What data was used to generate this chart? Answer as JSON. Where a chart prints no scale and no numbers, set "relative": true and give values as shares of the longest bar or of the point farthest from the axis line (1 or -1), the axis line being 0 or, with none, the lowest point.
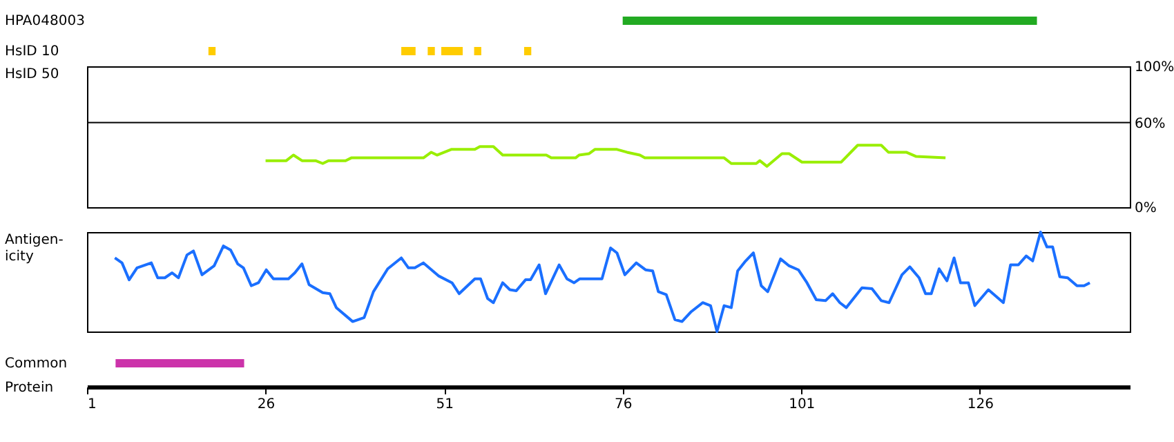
{
  "chart_data": [
    {
      "type": "bar",
      "orientation": "horizontal",
      "categories": [
        "HPA048003",
        "HsID 10"
      ],
      "xlim": [
        1,
        147
      ],
      "tick_labels": "y",
      "series": [
        {
          "color": "#22aa22",
          "values": [
            58,
            null
          ],
          "base": [
            76,
            null
          ]
        },
        {
          "color": "#ffcc00",
          "values": [
            null,
            1
          ],
          "base": [
            null,
            18
          ]
        },
        {
          "color": "#ffcc00",
          "values": [
            null,
            2
          ],
          "base": [
            null,
            45
          ]
        },
        {
          "color": "#ffcc00",
          "values": [
            null,
            1
          ],
          "base": [
            null,
            48.7
          ]
        },
        {
          "color": "#ffcc00",
          "values": [
            null,
            3
          ],
          "base": [
            null,
            50.6
          ]
        },
        {
          "color": "#ffcc00",
          "values": [
            null,
            1
          ],
          "base": [
            null,
            55.2
          ]
        },
        {
          "color": "#ffcc00",
          "values": [
            null,
            1
          ],
          "base": [
            null,
            62.2
          ]
        }
      ]
    },
    {
      "type": "line",
      "ylabel": "HsID 50",
      "xlim": [
        1,
        147
      ],
      "ylim": [
        0,
        100
      ],
      "yticks": [
        {
          "value": 0,
          "label": "0%"
        },
        {
          "value": 60,
          "label": "60%"
        },
        {
          "value": 100,
          "label": "100%"
        }
      ],
      "tick_labels": "y",
      "marker": "none",
      "ref_lines": [
        {
          "axis": "y",
          "value": 60,
          "color": "#000000"
        }
      ],
      "x": [
        26,
        28.9,
        29.9,
        31.1,
        33,
        34,
        34.8,
        37.2,
        38,
        48.1,
        49.2,
        50,
        52,
        55.3,
        56,
        57.9,
        59.2,
        65.3,
        66,
        69.4,
        69.9,
        71.3,
        72.1,
        75.2,
        76.6,
        78.4,
        79.1,
        90.2,
        91.2,
        94.7,
        95.2,
        96.2,
        98.3,
        99.3,
        101.1,
        104.8,
        106.6,
        108.9,
        112.2,
        113.2,
        115.7,
        117.1,
        121.2
      ],
      "series": [
        {
          "color": "#99ee00",
          "values": [
            33,
            33,
            37,
            33,
            33,
            31,
            33,
            33,
            35,
            35,
            39,
            37,
            41,
            41,
            43,
            43,
            37,
            37,
            35,
            35,
            37,
            38,
            41,
            41,
            39,
            37,
            35,
            35,
            31,
            31,
            33,
            29,
            38,
            38,
            32,
            32,
            32,
            44,
            44,
            39,
            39,
            36,
            35
          ]
        }
      ]
    },
    {
      "type": "line",
      "ylabel": "Antigen-icity",
      "relative": true,
      "xlim": [
        1,
        147
      ],
      "tick_labels": false,
      "marker": "none",
      "x": [
        4.9,
        5.9,
        6.9,
        8,
        10,
        10.9,
        11.9,
        12.9,
        13.8,
        15,
        15.9,
        17.1,
        18.8,
        20.1,
        21.1,
        22.1,
        22.9,
        24,
        25,
        26.1,
        27.1,
        29.2,
        30.1,
        31.1,
        32.1,
        34,
        35,
        35.9,
        38.2,
        39.8,
        41.1,
        43.1,
        45,
        46,
        46.9,
        48.1,
        50.2,
        52.1,
        53.1,
        55.3,
        56.1,
        57.1,
        57.9,
        59.2,
        60.2,
        61.1,
        62.4,
        63.1,
        64.3,
        65.2,
        67.1,
        68.2,
        69.2,
        70,
        73.1,
        74.3,
        75.2,
        76.3,
        77.9,
        79.2,
        80.2,
        81,
        82.1,
        83.3,
        84.3,
        85.6,
        87.2,
        88.3,
        89.2,
        90.2,
        91.2,
        92.1,
        93.1,
        94.3,
        95.4,
        96.3,
        98.1,
        99.3,
        100.6,
        101.8,
        103.1,
        104.4,
        105.4,
        106.4,
        107.3,
        109.5,
        110.9,
        112.2,
        113.3,
        115.1,
        116.2,
        117.5,
        118.4,
        119.2,
        120.3,
        121.4,
        122.4,
        123.3,
        124.4,
        125.3,
        127.2,
        129.3,
        130.3,
        131.4,
        132.5,
        133.4,
        134.5,
        135.4,
        136.2,
        137.2,
        138.3,
        139.6,
        140.6,
        141.4
      ],
      "series": [
        {
          "color": "#1a6fff",
          "values": [
            0.74,
            0.69,
            0.52,
            0.64,
            0.69,
            0.54,
            0.54,
            0.59,
            0.54,
            0.77,
            0.81,
            0.57,
            0.66,
            0.86,
            0.82,
            0.68,
            0.64,
            0.46,
            0.49,
            0.62,
            0.53,
            0.53,
            0.59,
            0.68,
            0.47,
            0.39,
            0.38,
            0.24,
            0.1,
            0.14,
            0.4,
            0.63,
            0.74,
            0.64,
            0.64,
            0.69,
            0.56,
            0.49,
            0.38,
            0.53,
            0.53,
            0.33,
            0.29,
            0.49,
            0.42,
            0.41,
            0.52,
            0.52,
            0.67,
            0.38,
            0.67,
            0.53,
            0.49,
            0.53,
            0.53,
            0.84,
            0.79,
            0.57,
            0.69,
            0.62,
            0.61,
            0.4,
            0.37,
            0.12,
            0.1,
            0.2,
            0.29,
            0.26,
            0,
            0.26,
            0.24,
            0.61,
            0.7,
            0.79,
            0.46,
            0.4,
            0.73,
            0.66,
            0.62,
            0.49,
            0.32,
            0.31,
            0.38,
            0.29,
            0.24,
            0.44,
            0.43,
            0.31,
            0.29,
            0.57,
            0.65,
            0.54,
            0.38,
            0.38,
            0.63,
            0.51,
            0.74,
            0.49,
            0.49,
            0.26,
            0.42,
            0.29,
            0.67,
            0.67,
            0.76,
            0.71,
            1,
            0.85,
            0.85,
            0.55,
            0.54,
            0.46,
            0.46,
            0.49
          ]
        }
      ]
    },
    {
      "type": "bar",
      "orientation": "horizontal",
      "categories": [
        "Common"
      ],
      "values": [
        18
      ],
      "base": [
        5
      ],
      "color": "#cc33aa",
      "xlim": [
        1,
        147
      ],
      "xticks": [
        1,
        26,
        51,
        76,
        101,
        126
      ],
      "xlabel": "Protein"
    }
  ]
}
